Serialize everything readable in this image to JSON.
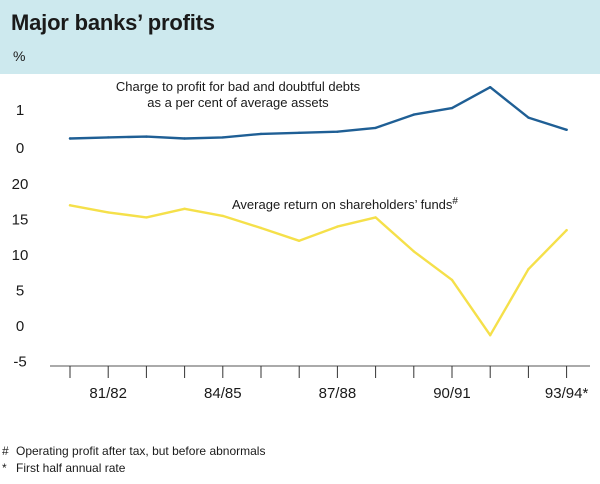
{
  "title": "Major banks’ profits",
  "unit": "%",
  "chart_data": [
    {
      "type": "line",
      "name": "top-panel",
      "annotation": "Charge to profit for bad and doubtful debts",
      "annotation2": "as a per cent of average assets",
      "color": "#1f5f95",
      "ylim": [
        -0.2,
        1.6
      ],
      "yticks": [
        {
          "v": 1,
          "label": "1"
        },
        {
          "v": 0,
          "label": "0"
        }
      ],
      "x": [
        0,
        1,
        2,
        3,
        4,
        5,
        6,
        7,
        8,
        9,
        10,
        11,
        12,
        13
      ],
      "values": [
        0.25,
        0.28,
        0.3,
        0.25,
        0.28,
        0.37,
        0.4,
        0.43,
        0.53,
        0.88,
        1.05,
        1.6,
        0.8,
        0.48
      ]
    },
    {
      "type": "line",
      "name": "bottom-panel",
      "annotation": "Average return on shareholders’ funds",
      "annotation_mark": "#",
      "color": "#f5e04a",
      "ylim": [
        -5,
        20
      ],
      "yticks": [
        {
          "v": 20,
          "label": "20"
        },
        {
          "v": 15,
          "label": "15"
        },
        {
          "v": 10,
          "label": "10"
        },
        {
          "v": 5,
          "label": "5"
        },
        {
          "v": 0,
          "label": "0"
        },
        {
          "v": -5,
          "label": "-5"
        }
      ],
      "x": [
        0,
        1,
        2,
        3,
        4,
        5,
        6,
        7,
        8,
        9,
        10,
        11,
        12,
        13
      ],
      "values": [
        17,
        16,
        15.3,
        16.5,
        15.5,
        13.8,
        12,
        14,
        15.3,
        10.5,
        6.5,
        -1.3,
        8,
        13.5
      ]
    }
  ],
  "xaxis": {
    "tick_count": 14,
    "labels": [
      {
        "i": 1,
        "label": "81/82"
      },
      {
        "i": 4,
        "label": "84/85"
      },
      {
        "i": 7,
        "label": "87/88"
      },
      {
        "i": 10,
        "label": "90/91"
      },
      {
        "i": 13,
        "label": "93/94*"
      }
    ]
  },
  "footnotes": [
    {
      "mark": "#",
      "text": "Operating profit after tax, but before abnormals"
    },
    {
      "mark": "*",
      "text": "First half annual rate"
    }
  ]
}
